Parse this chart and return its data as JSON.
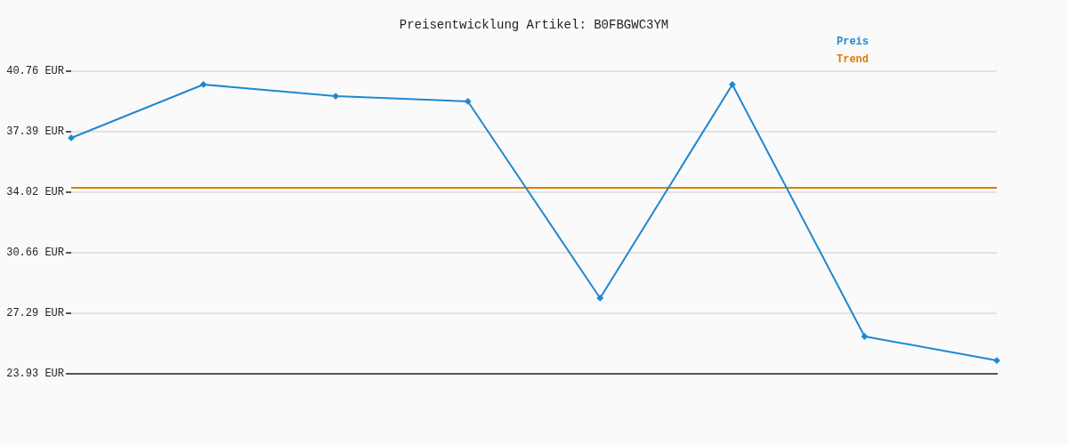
{
  "chart_data": {
    "type": "line",
    "title": "Preisentwicklung Artikel: B0FBGWC3YM",
    "categories": [
      null,
      null,
      null,
      null,
      null,
      null,
      null,
      null
    ],
    "series": [
      {
        "name": "Preis",
        "color": "#1f88d2",
        "marker": "diamond",
        "values": [
          37.05,
          40.02,
          39.37,
          39.08,
          28.14,
          40.02,
          26.01,
          24.67
        ]
      },
      {
        "name": "Trend",
        "color": "#e07b00",
        "marker": "none",
        "values": [
          34.28,
          34.28,
          34.28,
          34.28,
          34.28,
          34.28,
          34.28,
          34.28
        ]
      }
    ],
    "ylim": [
      23.93,
      40.76
    ],
    "yticks": [
      {
        "value": 23.93,
        "label": "23.93 EUR"
      },
      {
        "value": 27.29,
        "label": "27.29 EUR"
      },
      {
        "value": 30.66,
        "label": "30.66 EUR"
      },
      {
        "value": 34.02,
        "label": "34.02 EUR"
      },
      {
        "value": 37.39,
        "label": "37.39 EUR"
      },
      {
        "value": 40.76,
        "label": "40.76 EUR"
      }
    ],
    "grid": "y",
    "legend": "top right",
    "line_style": "solid"
  }
}
